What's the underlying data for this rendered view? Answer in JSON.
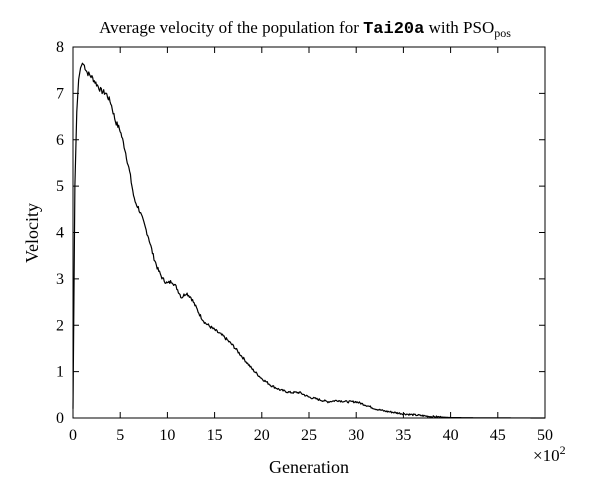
{
  "chart_data": {
    "type": "line",
    "title_prefix": "Average velocity of the population for ",
    "title_instance": "Tai20a",
    "title_middle": " with PSO",
    "title_subscript": "pos",
    "xlabel": "Generation",
    "ylabel": "Velocity",
    "x_multiplier_label": "×10",
    "x_multiplier_exponent": "2",
    "xlim": [
      0,
      50
    ],
    "ylim": [
      0,
      8
    ],
    "xticks": [
      0,
      5,
      10,
      15,
      20,
      25,
      30,
      35,
      40,
      45,
      50
    ],
    "yticks": [
      0,
      1,
      2,
      3,
      4,
      5,
      6,
      7,
      8
    ],
    "grid": false,
    "line_color": "#000000",
    "series": [
      {
        "x": [
          0,
          0.2,
          0.4,
          0.6,
          0.8,
          1.0,
          1.2,
          1.5,
          2,
          2.5,
          3,
          3.5,
          4,
          4.5,
          5,
          5.5,
          6,
          6.5,
          7,
          7.5,
          8,
          8.5,
          9,
          9.5,
          10,
          10.5,
          11,
          11.5,
          12,
          12.5,
          13,
          13.5,
          14,
          15,
          16,
          17,
          18,
          19,
          20,
          21,
          22,
          23,
          24,
          25,
          26,
          27,
          28,
          29,
          30,
          31,
          32,
          33,
          34,
          35,
          36,
          37,
          38,
          39,
          40,
          42,
          44,
          46,
          48,
          50
        ],
        "y": [
          0.2,
          5.0,
          6.6,
          7.3,
          7.55,
          7.65,
          7.6,
          7.45,
          7.35,
          7.2,
          7.05,
          7.0,
          6.8,
          6.4,
          6.2,
          5.8,
          5.3,
          4.7,
          4.5,
          4.2,
          3.9,
          3.5,
          3.2,
          3.0,
          2.9,
          2.95,
          2.8,
          2.6,
          2.7,
          2.6,
          2.4,
          2.2,
          2.05,
          1.9,
          1.75,
          1.55,
          1.3,
          1.05,
          0.85,
          0.7,
          0.6,
          0.55,
          0.55,
          0.45,
          0.4,
          0.35,
          0.38,
          0.35,
          0.35,
          0.28,
          0.2,
          0.15,
          0.12,
          0.09,
          0.07,
          0.05,
          0.03,
          0.02,
          0.01,
          0.005,
          0.003,
          0.002,
          0.001,
          0.0
        ]
      }
    ]
  }
}
